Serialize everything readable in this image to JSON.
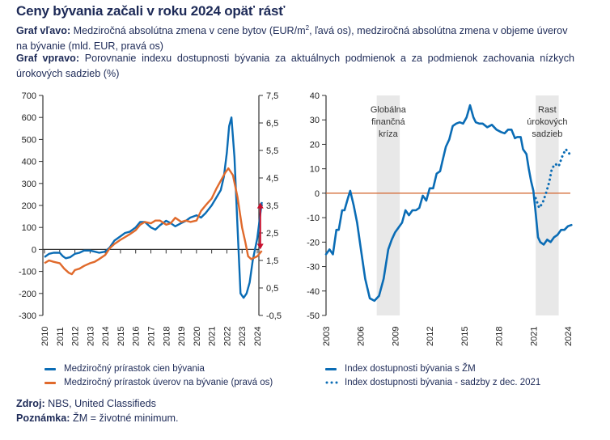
{
  "header": {
    "title": "Ceny bývania začali v roku 2024 opäť rásť",
    "desc_left_label": "Graf vľavo:",
    "desc_left_text_a": " Medziročná absolútna zmena v cene bytov (EUR/m",
    "desc_left_sup": "2",
    "desc_left_text_b": ", ľavá os), medziročná absolútna zmena v objeme úverov na bývanie (mld. EUR, pravá os)",
    "desc_right_label": "Graf vpravo:",
    "desc_right_text": " Porovnanie indexu dostupnosti bývania za aktuálnych podmienok a za podmienok zachovania nízkych úrokových sadzieb (%)"
  },
  "footer": {
    "source_label": "Zdroj:",
    "source_text": " NBS, United Classifieds",
    "note_label": "Poznámka:",
    "note_text": " ŽM = životné minimum."
  },
  "colors": {
    "blue": "#0a6cb5",
    "orange": "#e06a2c",
    "red_arrow": "#c8102e",
    "zero_line_right": "#d2622a",
    "band": "#e8e8e8",
    "axis": "#333333"
  },
  "chart_data": [
    {
      "type": "line",
      "title": "",
      "xlabel": "",
      "ylabel": "",
      "xlim": [
        2010,
        2024.4
      ],
      "ylim": [
        -300,
        700
      ],
      "y2lim": [
        -0.5,
        7.5
      ],
      "x_ticks": [
        "2010",
        "2011",
        "2012",
        "2013",
        "2014",
        "2015",
        "2016",
        "2017",
        "2018",
        "2019",
        "2020",
        "2021",
        "2022",
        "2023",
        "2024"
      ],
      "y_ticks": [
        "700",
        "600",
        "500",
        "400",
        "300",
        "200",
        "100",
        "0",
        "-100",
        "-200",
        "-300"
      ],
      "y2_ticks": [
        "7,5",
        "6,5",
        "5,5",
        "4,5",
        "3,5",
        "2,5",
        "1,5",
        "0,5",
        "-0,5"
      ],
      "legend": "bottom",
      "grid": false,
      "annotations": [
        {
          "type": "double-arrow",
          "x": 2024.2,
          "from_y2": 1.9,
          "to_y2": 3.6
        }
      ],
      "series": [
        {
          "name": "Medziročný prírastok cien bývania",
          "axis": "left",
          "color": "#0a6cb5",
          "x": [
            2010,
            2010.3,
            2010.6,
            2011,
            2011.2,
            2011.4,
            2011.7,
            2012,
            2012.3,
            2012.6,
            2013,
            2013.3,
            2013.6,
            2014,
            2014.3,
            2014.6,
            2015,
            2015.3,
            2015.6,
            2016,
            2016.3,
            2016.6,
            2017,
            2017.3,
            2017.6,
            2018,
            2018.3,
            2018.6,
            2019,
            2019.3,
            2019.6,
            2020,
            2020.3,
            2020.6,
            2021,
            2021.3,
            2021.6,
            2021.8,
            2022,
            2022.15,
            2022.3,
            2022.5,
            2022.7,
            2022.9,
            2023.1,
            2023.3,
            2023.5,
            2023.7,
            2024,
            2024.3
          ],
          "y": [
            -35,
            -20,
            -15,
            -15,
            -30,
            -40,
            -35,
            -20,
            -15,
            -5,
            -5,
            -10,
            -15,
            -10,
            10,
            40,
            60,
            75,
            80,
            100,
            125,
            125,
            100,
            90,
            110,
            130,
            120,
            105,
            120,
            130,
            145,
            155,
            145,
            165,
            200,
            235,
            270,
            330,
            440,
            560,
            600,
            420,
            100,
            -200,
            -220,
            -200,
            -150,
            -50,
            50,
            215
          ]
        },
        {
          "name": "Medziročný prírastok úverov na bývanie (pravá os)",
          "axis": "right",
          "color": "#e06a2c",
          "x": [
            2010,
            2010.3,
            2010.6,
            2011,
            2011.3,
            2011.6,
            2011.8,
            2012,
            2012.3,
            2012.6,
            2013,
            2013.3,
            2013.6,
            2014,
            2014.3,
            2014.6,
            2015,
            2015.3,
            2015.6,
            2016,
            2016.3,
            2016.6,
            2017,
            2017.3,
            2017.6,
            2018,
            2018.3,
            2018.6,
            2019,
            2019.3,
            2019.6,
            2020,
            2020.3,
            2020.6,
            2021,
            2021.3,
            2021.6,
            2021.9,
            2022.1,
            2022.4,
            2022.7,
            2023,
            2023.2,
            2023.4,
            2023.6,
            2023.8,
            2024,
            2024.3
          ],
          "y": [
            1.4,
            1.5,
            1.45,
            1.4,
            1.2,
            1.05,
            1.0,
            1.15,
            1.2,
            1.3,
            1.4,
            1.45,
            1.55,
            1.7,
            1.95,
            2.1,
            2.25,
            2.35,
            2.45,
            2.6,
            2.8,
            2.9,
            2.85,
            2.95,
            2.95,
            2.8,
            2.85,
            3.05,
            2.9,
            2.95,
            2.9,
            2.95,
            3.3,
            3.5,
            3.75,
            4.1,
            4.4,
            4.7,
            4.85,
            4.6,
            3.8,
            2.7,
            2.2,
            1.65,
            1.55,
            1.6,
            1.65,
            1.85
          ]
        }
      ]
    },
    {
      "type": "line",
      "title": "",
      "xlabel": "",
      "ylabel": "",
      "xlim": [
        2003,
        2024.5
      ],
      "ylim": [
        -50,
        40
      ],
      "x_ticks": [
        "2003",
        "2006",
        "2009",
        "2012",
        "2015",
        "2018",
        "2021",
        "2024"
      ],
      "y_ticks": [
        "40",
        "30",
        "20",
        "10",
        "0",
        "-10",
        "-20",
        "-30",
        "-40",
        "-50"
      ],
      "legend": "bottom",
      "grid": false,
      "reference_line": {
        "y": 0
      },
      "shaded_periods": [
        {
          "from": 2007.4,
          "to": 2009.4,
          "label": [
            "Globálna",
            "finančná",
            "kríza"
          ]
        },
        {
          "from": 2021.2,
          "to": 2023.2,
          "label": [
            "Rast",
            "úrokových",
            "sadzieb"
          ]
        }
      ],
      "series": [
        {
          "name": "Index dostupnosti bývania s ŽM",
          "style": "solid",
          "color": "#0a6cb5",
          "x": [
            2003,
            2003.3,
            2003.6,
            2003.9,
            2004.1,
            2004.4,
            2004.6,
            2004.9,
            2005.1,
            2005.4,
            2005.7,
            2006,
            2006.4,
            2006.8,
            2007.2,
            2007.6,
            2008,
            2008.4,
            2008.7,
            2009,
            2009.3,
            2009.6,
            2009.9,
            2010.2,
            2010.5,
            2010.8,
            2011.1,
            2011.4,
            2011.7,
            2012,
            2012.3,
            2012.6,
            2012.9,
            2013.1,
            2013.4,
            2013.7,
            2014,
            2014.3,
            2014.6,
            2014.9,
            2015.2,
            2015.5,
            2015.8,
            2016,
            2016.3,
            2016.6,
            2017,
            2017.4,
            2017.8,
            2018.2,
            2018.5,
            2018.8,
            2019.1,
            2019.4,
            2019.6,
            2019.9,
            2020.1,
            2020.4,
            2020.6,
            2020.8,
            2021,
            2021.2,
            2021.4,
            2021.6,
            2021.9,
            2022.2,
            2022.5,
            2022.8,
            2023.1,
            2023.4,
            2023.7,
            2024,
            2024.3
          ],
          "y": [
            -25,
            -23,
            -25,
            -15,
            -15,
            -7,
            -7,
            -2,
            1,
            -5,
            -12,
            -22,
            -35,
            -43,
            -44,
            -42,
            -35,
            -23,
            -19,
            -16,
            -14,
            -12,
            -7,
            -9,
            -7,
            -7,
            -6,
            -1,
            -3,
            2,
            2,
            8,
            9,
            13,
            19,
            22,
            27.5,
            28.5,
            29,
            28.5,
            31,
            36,
            31,
            29,
            28.5,
            28.5,
            27,
            28,
            26,
            25,
            24.5,
            26,
            26,
            22.5,
            23,
            23,
            18,
            16,
            10,
            5,
            1,
            -8,
            -18,
            -20,
            -21,
            -19,
            -20,
            -18,
            -17,
            -15,
            -15,
            -13.5,
            -13
          ]
        },
        {
          "name": "Index dostupnosti bývania - sadzby z dec. 2021",
          "style": "dotted",
          "color": "#0a6cb5",
          "x": [
            2021.2,
            2021.5,
            2021.8,
            2022.1,
            2022.4,
            2022.6,
            2022.9,
            2023.2,
            2023.5,
            2023.8,
            2024,
            2024.3
          ],
          "y": [
            -2,
            -6,
            -4,
            0,
            5,
            10,
            12,
            11,
            15,
            18,
            17,
            15
          ]
        }
      ]
    }
  ],
  "legend": {
    "left": [
      "Medziročný prírastok cien bývania",
      "Medziročný prírastok úverov na bývanie (pravá os)"
    ],
    "right": [
      "Index dostupnosti bývania s ŽM",
      "Index dostupnosti bývania - sadzby z dec. 2021"
    ]
  }
}
